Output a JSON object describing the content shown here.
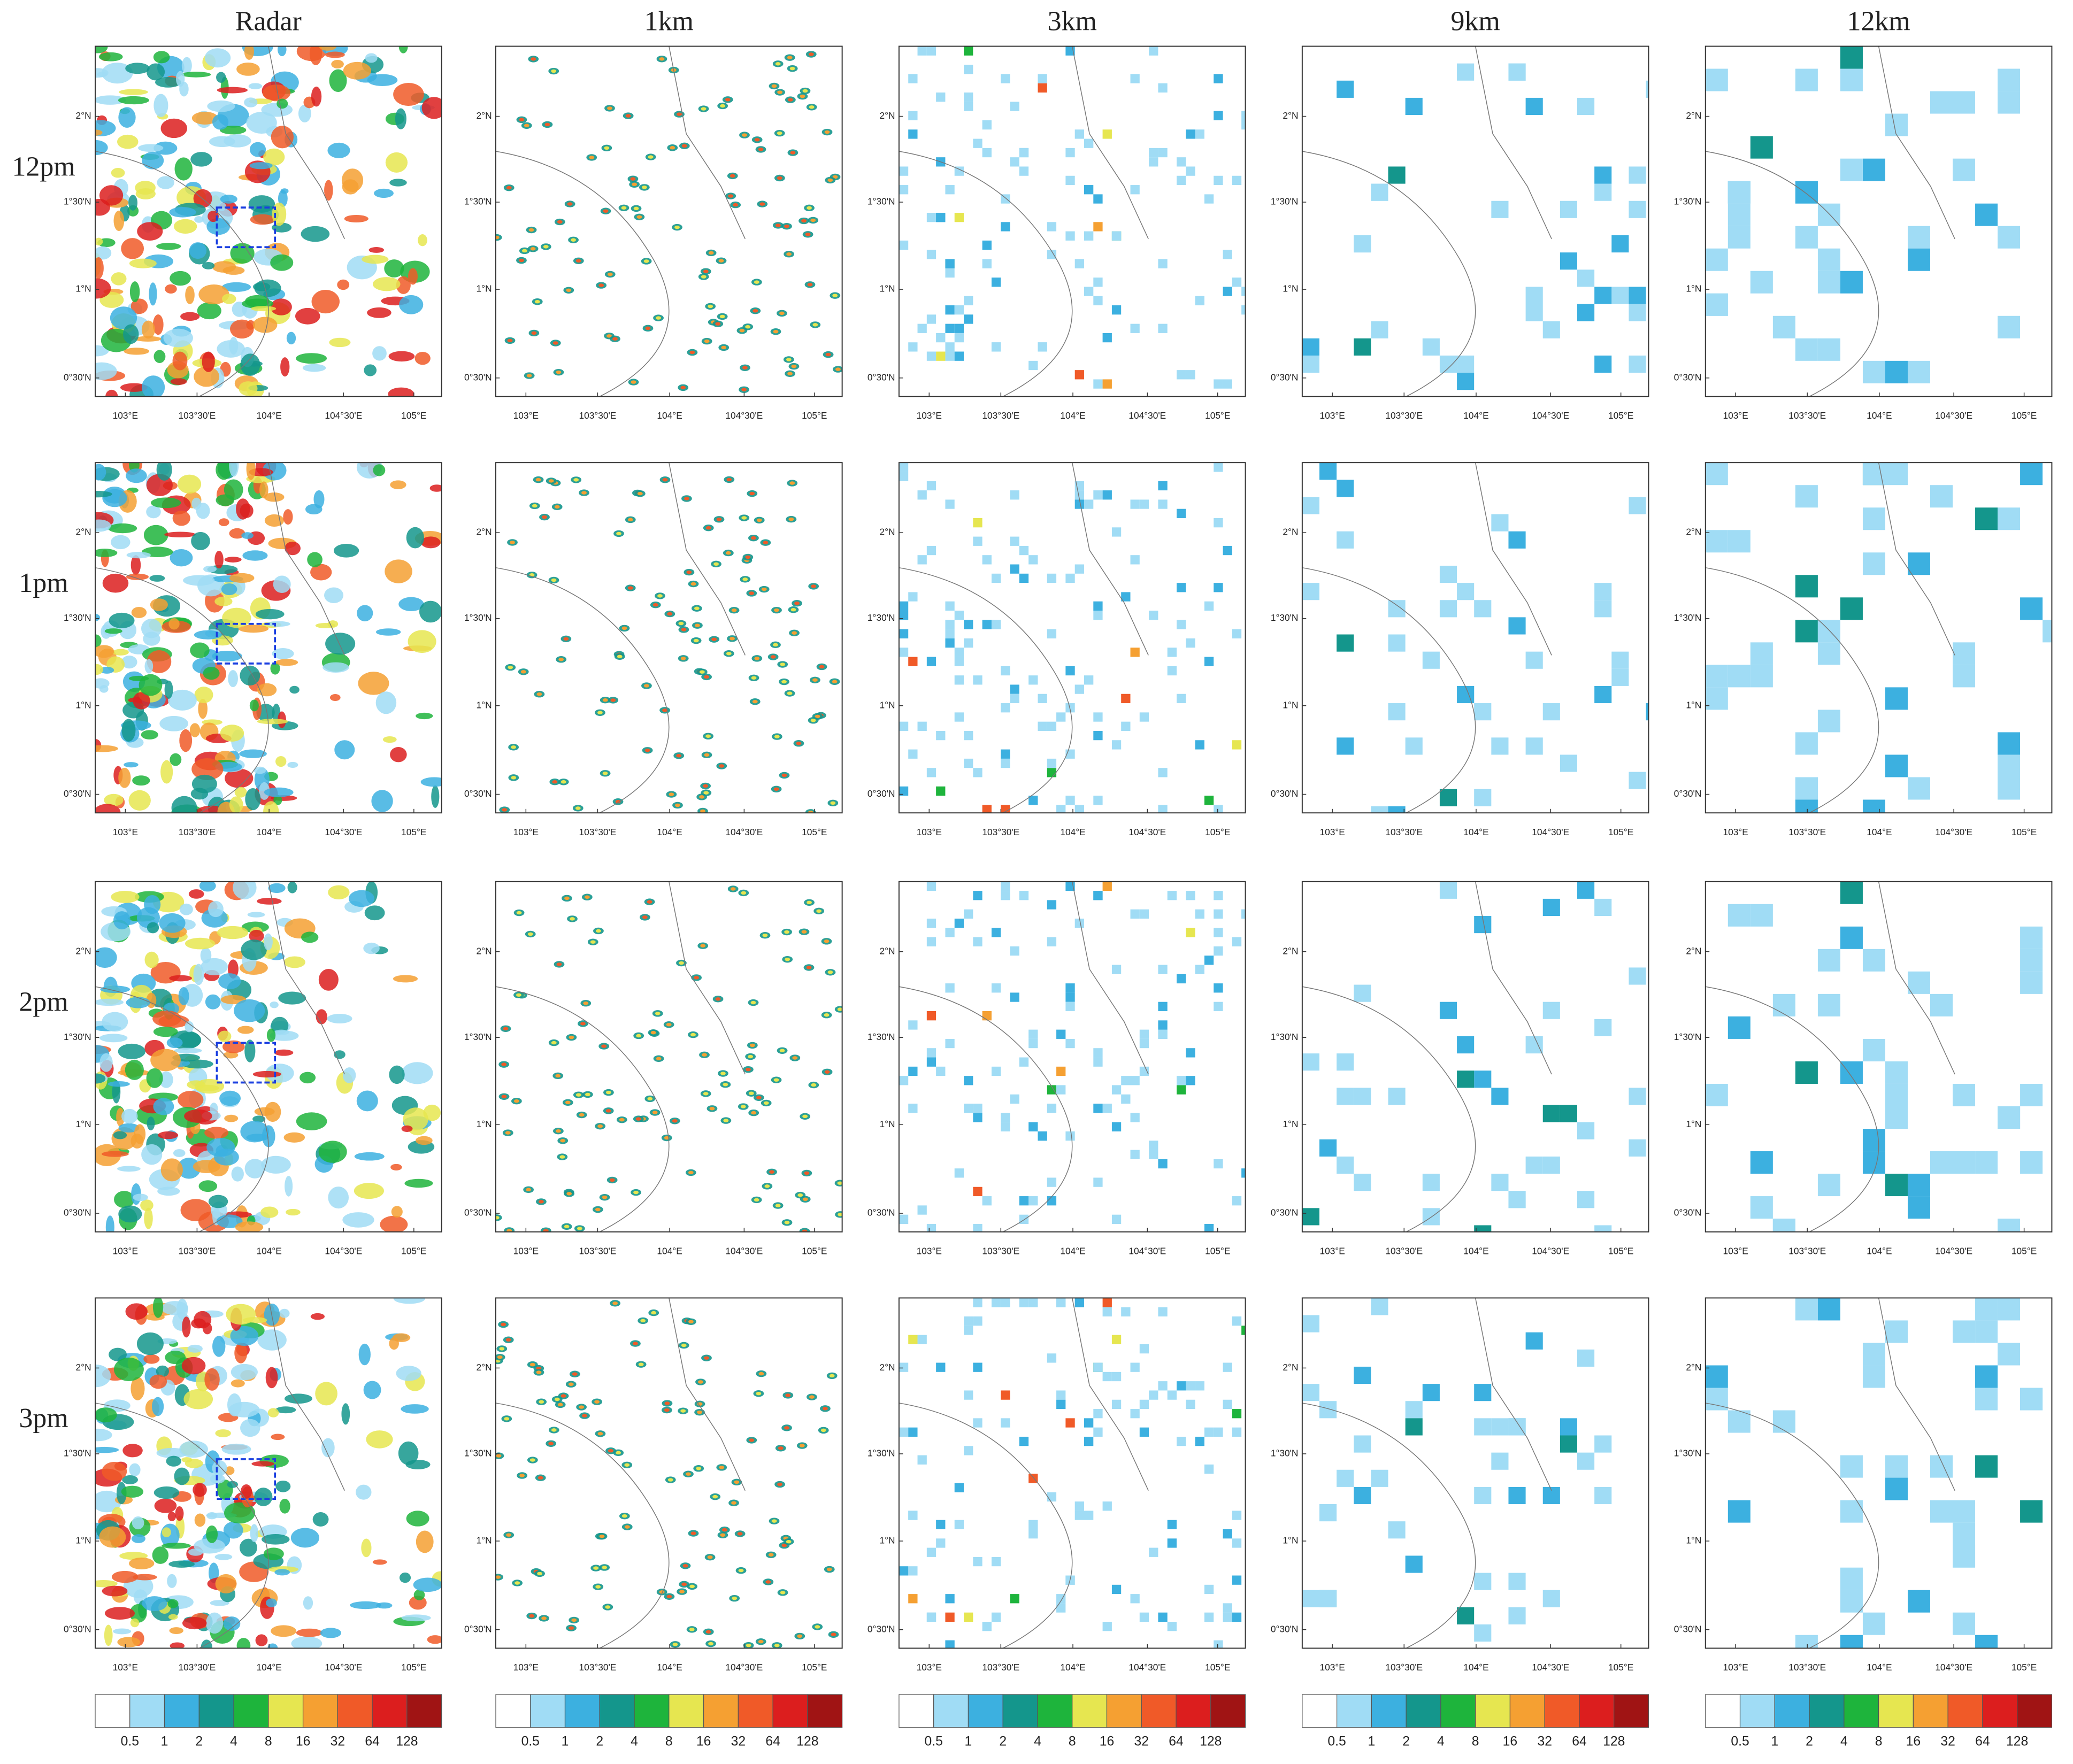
{
  "columns": [
    "Radar",
    "1km",
    "3km",
    "9km",
    "12km"
  ],
  "rows": [
    "12pm",
    "1pm",
    "2pm",
    "3pm"
  ],
  "x_ticks": [
    "103°E",
    "103°30'E",
    "104°E",
    "104°30'E",
    "105°E"
  ],
  "y_ticks": [
    "2°N",
    "1°30'N",
    "1°N",
    "0°30'N"
  ],
  "colorbar": {
    "levels": [
      0.5,
      1,
      2,
      4,
      8,
      16,
      32,
      64,
      128
    ],
    "colors": [
      "#ffffff",
      "#a0dcf5",
      "#3cb0e0",
      "#14968c",
      "#1eb43c",
      "#e6e650",
      "#f5a032",
      "#f05a28",
      "#dc1e1e",
      "#a01414"
    ]
  }
}
